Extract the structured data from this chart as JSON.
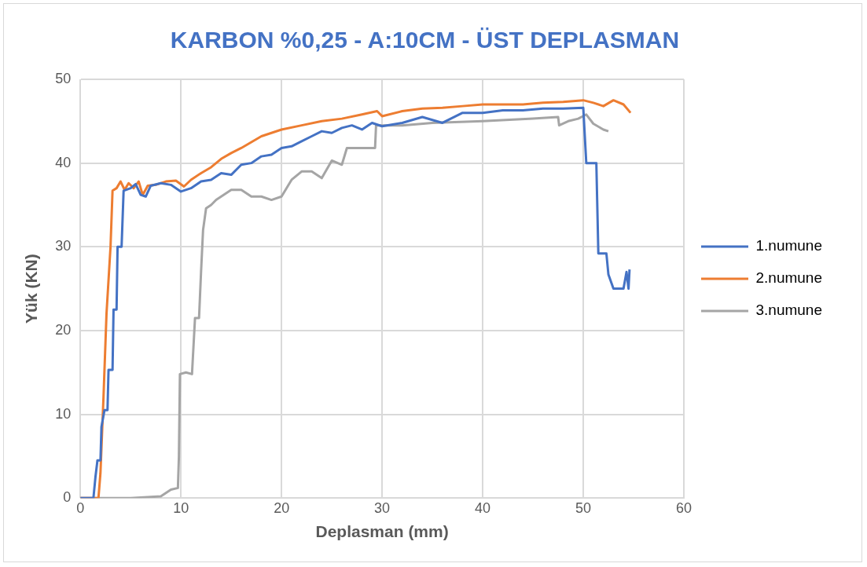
{
  "chart_data": {
    "type": "line",
    "title": "KARBON %0,25 - A:10CM - ÜST DEPLASMAN",
    "xlabel": "Deplasman (mm)",
    "ylabel": "Yük (KN)",
    "xlim": [
      0,
      60
    ],
    "xticks": [
      0,
      10,
      20,
      30,
      40,
      50,
      60
    ],
    "ylim": [
      0,
      50
    ],
    "yticks": [
      0,
      10,
      20,
      30,
      40,
      50
    ],
    "grid": true,
    "legend": "right",
    "marker": "none",
    "line_style": "solid",
    "series": [
      {
        "name": "1.numune",
        "color": "#4472c4",
        "x": [
          0,
          1.3,
          1.5,
          1.7,
          2,
          2.1,
          2.4,
          2.7,
          2.8,
          3.2,
          3.3,
          3.6,
          3.7,
          4.1,
          4.3,
          5,
          5.5,
          6,
          6.5,
          7,
          8,
          9,
          10,
          11,
          12,
          13,
          14,
          15,
          16,
          17,
          18,
          19,
          20,
          21,
          22,
          23,
          24,
          25,
          26,
          27,
          28,
          29,
          30,
          32,
          34,
          36,
          38,
          40,
          42,
          44,
          46,
          48,
          50,
          50.3,
          51.3,
          51.5,
          52.3,
          52.5,
          53,
          54,
          54.3,
          54.5,
          54.6
        ],
        "values": [
          0,
          0,
          2.5,
          4.5,
          4.5,
          8.5,
          10.5,
          10.5,
          15.3,
          15.3,
          22.5,
          22.5,
          30,
          30,
          36.7,
          37,
          37.5,
          36.2,
          36,
          37.3,
          37.6,
          37.4,
          36.6,
          37,
          37.8,
          38,
          38.8,
          38.6,
          39.8,
          40,
          40.8,
          41,
          41.8,
          42,
          42.6,
          43.2,
          43.8,
          43.6,
          44.2,
          44.5,
          44,
          44.8,
          44.4,
          44.8,
          45.5,
          44.8,
          46,
          46,
          46.3,
          46.3,
          46.5,
          46.5,
          46.6,
          40,
          40,
          29.2,
          29.2,
          26.7,
          25,
          25,
          27,
          25,
          27.3
        ]
      },
      {
        "name": "2.numune",
        "color": "#ed7d31",
        "x": [
          0,
          1.8,
          2,
          2.3,
          2.6,
          3,
          3.2,
          3.6,
          4,
          4.4,
          4.8,
          5.3,
          5.8,
          6.2,
          6.7,
          7.5,
          8.5,
          9.5,
          10.3,
          11,
          12,
          13,
          14,
          15,
          16,
          17,
          18,
          20,
          22,
          24,
          26,
          28,
          29.5,
          30,
          32,
          34,
          36,
          38,
          40,
          42,
          44,
          46,
          48,
          50,
          51,
          52,
          53,
          54,
          54.7
        ],
        "values": [
          0,
          0,
          3,
          12,
          22,
          30,
          36.7,
          37,
          37.8,
          36.8,
          37.6,
          37,
          37.8,
          36.2,
          37.3,
          37.4,
          37.8,
          37.9,
          37.2,
          38,
          38.8,
          39.5,
          40.5,
          41.2,
          41.8,
          42.5,
          43.2,
          44,
          44.5,
          45,
          45.3,
          45.8,
          46.2,
          45.6,
          46.2,
          46.5,
          46.6,
          46.8,
          47,
          47,
          47,
          47.2,
          47.3,
          47.5,
          47.2,
          46.8,
          47.5,
          47,
          46
        ]
      },
      {
        "name": "3.numune",
        "color": "#a5a5a5",
        "x": [
          0,
          5,
          8,
          9,
          9.7,
          9.8,
          9.9,
          10.5,
          11.1,
          11.4,
          11.8,
          12,
          12.2,
          12.5,
          13,
          13.5,
          14,
          15,
          16,
          17,
          18,
          19,
          20,
          21,
          22,
          23,
          24,
          25,
          26,
          26.5,
          29.3,
          29.4,
          32,
          35,
          40,
          45,
          47.5,
          47.6,
          48.5,
          49.5,
          50.3,
          51,
          52,
          52.5
        ],
        "values": [
          0,
          0,
          0.2,
          1,
          1.2,
          5,
          14.8,
          15,
          14.8,
          21.5,
          21.5,
          27,
          32,
          34.6,
          35,
          35.6,
          36,
          36.8,
          36.8,
          36,
          36,
          35.6,
          36,
          38,
          39,
          39,
          38.2,
          40.3,
          39.8,
          41.8,
          41.8,
          44.5,
          44.5,
          44.8,
          45,
          45.3,
          45.5,
          44.5,
          45,
          45.3,
          45.8,
          44.7,
          44,
          43.8
        ]
      }
    ]
  }
}
